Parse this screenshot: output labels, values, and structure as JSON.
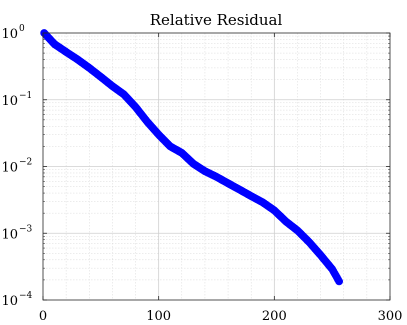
{
  "chart_data": {
    "type": "line",
    "title": "Relative Residual",
    "xlabel": "",
    "ylabel": "",
    "xlim": [
      0,
      300
    ],
    "ylim": [
      0.0001,
      1
    ],
    "yscale": "log",
    "grid": true,
    "minor_grid": true,
    "x_ticks": [
      "0",
      "100",
      "200",
      "300"
    ],
    "y_ticks": [
      {
        "base": "10",
        "exp": "0"
      },
      {
        "base": "10",
        "exp": "−1"
      },
      {
        "base": "10",
        "exp": "−2"
      },
      {
        "base": "10",
        "exp": "−3"
      },
      {
        "base": "10",
        "exp": "−4"
      }
    ],
    "marker": "circle",
    "color": "#0000ff",
    "series": [
      {
        "x": [
          1,
          10,
          20,
          30,
          40,
          50,
          60,
          70,
          80,
          90,
          100,
          110,
          120,
          130,
          140,
          150,
          160,
          170,
          180,
          190,
          200,
          210,
          220,
          230,
          240,
          250,
          256
        ],
        "y": [
          1.0,
          0.68,
          0.52,
          0.4,
          0.3,
          0.22,
          0.16,
          0.12,
          0.078,
          0.047,
          0.03,
          0.02,
          0.016,
          0.011,
          0.0085,
          0.007,
          0.0056,
          0.0045,
          0.0036,
          0.0029,
          0.0022,
          0.0015,
          0.0011,
          0.00074,
          0.00047,
          0.00029,
          0.00019
        ]
      }
    ]
  }
}
